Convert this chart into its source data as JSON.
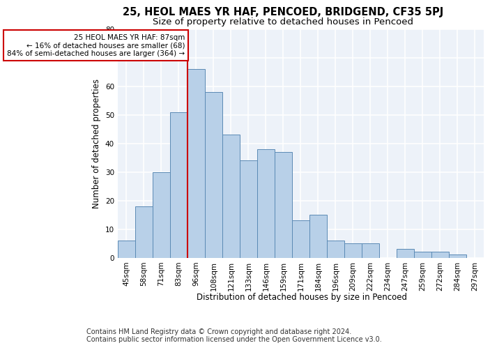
{
  "title1": "25, HEOL MAES YR HAF, PENCOED, BRIDGEND, CF35 5PJ",
  "title2": "Size of property relative to detached houses in Pencoed",
  "xlabel": "Distribution of detached houses by size in Pencoed",
  "ylabel": "Number of detached properties",
  "footnote": "Contains HM Land Registry data © Crown copyright and database right 2024.\nContains public sector information licensed under the Open Government Licence v3.0.",
  "categories": [
    "45sqm",
    "58sqm",
    "71sqm",
    "83sqm",
    "96sqm",
    "108sqm",
    "121sqm",
    "133sqm",
    "146sqm",
    "159sqm",
    "171sqm",
    "184sqm",
    "196sqm",
    "209sqm",
    "222sqm",
    "234sqm",
    "247sqm",
    "259sqm",
    "272sqm",
    "284sqm",
    "297sqm"
  ],
  "values": [
    6,
    18,
    30,
    51,
    66,
    58,
    43,
    34,
    38,
    37,
    13,
    15,
    6,
    5,
    5,
    0,
    3,
    2,
    2,
    1,
    0
  ],
  "bar_color": "#b8d0e8",
  "bar_edge_color": "#5b8ab5",
  "vline_x_index": 3,
  "annotation_text": "25 HEOL MAES YR HAF: 87sqm\n← 16% of detached houses are smaller (68)\n84% of semi-detached houses are larger (364) →",
  "vline_color": "#cc0000",
  "annotation_box_color": "#ffffff",
  "annotation_box_edge": "#cc0000",
  "ylim": [
    0,
    80
  ],
  "yticks": [
    0,
    10,
    20,
    30,
    40,
    50,
    60,
    70,
    80
  ],
  "bg_color": "#edf2f9",
  "grid_color": "#ffffff",
  "title1_fontsize": 10.5,
  "title2_fontsize": 9.5,
  "xlabel_fontsize": 8.5,
  "ylabel_fontsize": 8.5,
  "footnote_fontsize": 7,
  "tick_fontsize": 7.5,
  "ann_fontsize": 7.5
}
